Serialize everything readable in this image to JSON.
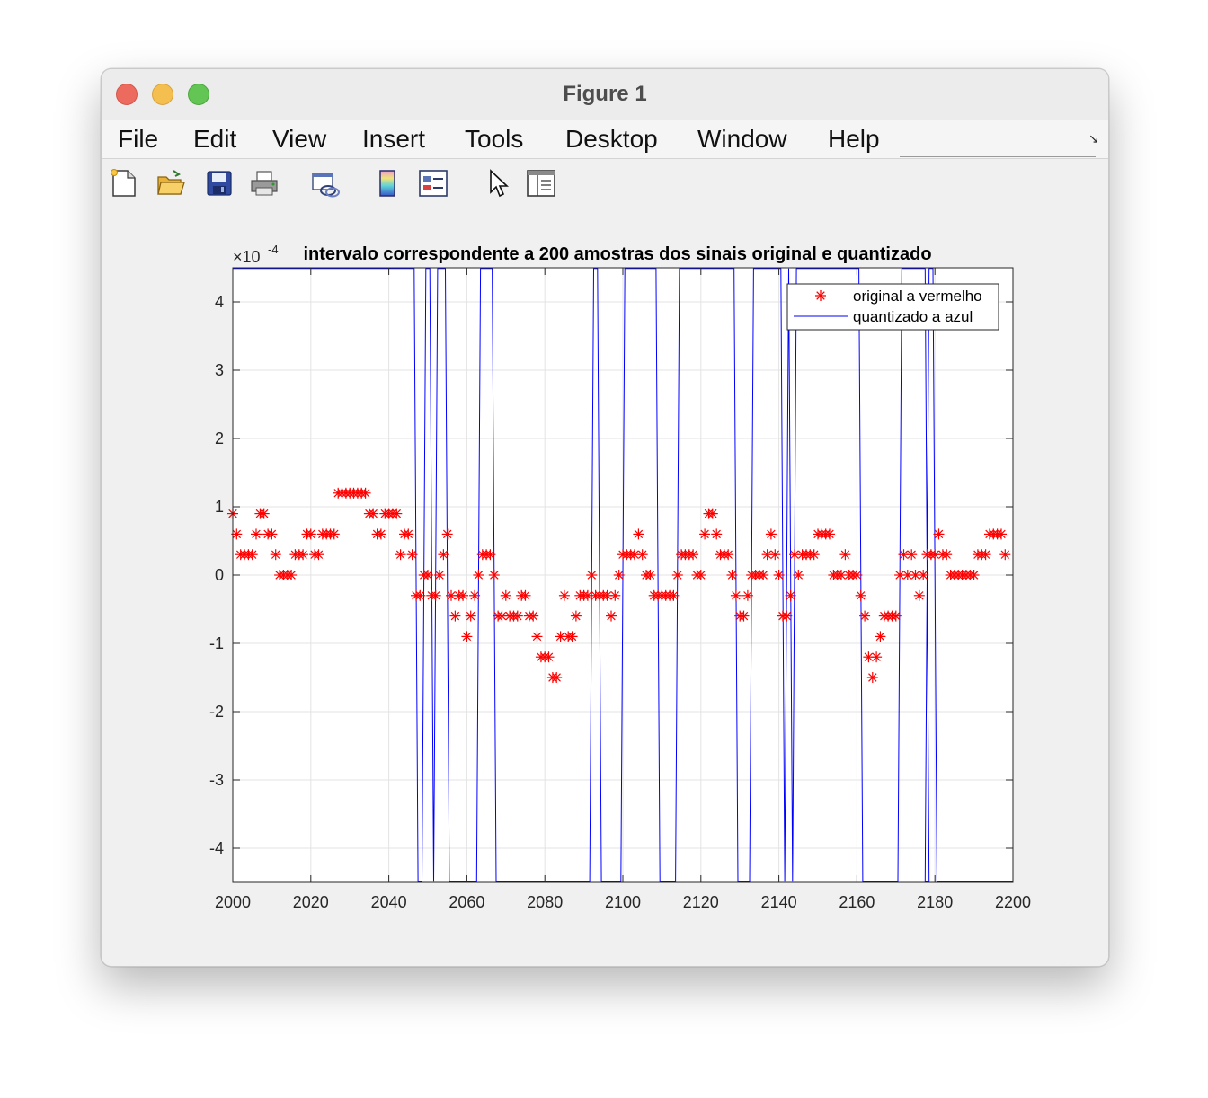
{
  "window": {
    "title": "Figure 1",
    "traffic_lights": {
      "close": "#ed6a5e",
      "minimize": "#f5bf4f",
      "maximize": "#62c554"
    }
  },
  "menubar": {
    "items": [
      {
        "label": "File"
      },
      {
        "label": "Edit"
      },
      {
        "label": "View"
      },
      {
        "label": "Insert"
      },
      {
        "label": "Tools"
      },
      {
        "label": "Desktop"
      },
      {
        "label": "Window"
      },
      {
        "label": "Help"
      }
    ],
    "overflow_icon": "dock-arrow-icon"
  },
  "toolbar": {
    "buttons": [
      {
        "icon": "new-figure-icon"
      },
      {
        "icon": "open-file-icon"
      },
      {
        "icon": "save-icon"
      },
      {
        "icon": "print-icon"
      },
      {
        "icon": "link-plot-icon"
      },
      {
        "icon": "colorbar-icon"
      },
      {
        "icon": "legend-icon"
      },
      {
        "icon": "pointer-icon"
      },
      {
        "icon": "property-inspector-icon"
      }
    ]
  },
  "chart_data": {
    "type": "line",
    "title": "intervalo correspondente a 200 amostras dos sinais original e quantizado",
    "xlabel": "",
    "ylabel": "",
    "xlim": [
      2000,
      2200
    ],
    "ylim": [
      -0.00045,
      0.00045
    ],
    "y_exponent_label": "×10",
    "y_exponent_power": "-4",
    "x_ticks": [
      "2000",
      "2020",
      "2040",
      "2060",
      "2080",
      "2100",
      "2120",
      "2140",
      "2160",
      "2180",
      "2200"
    ],
    "y_ticks": [
      "-4",
      "-3",
      "-2",
      "-1",
      "0",
      "1",
      "2",
      "3",
      "4"
    ],
    "grid": true,
    "legend_position": "top-right",
    "series": [
      {
        "name": "original a vermelho",
        "color": "#ff0000",
        "marker": "*",
        "x_start": 2000,
        "values_e4": [
          0.9,
          0.6,
          0.3,
          0.3,
          0.3,
          0.3,
          0.6,
          0.9,
          0.9,
          0.6,
          0.6,
          0.3,
          0,
          0,
          0,
          0,
          0.3,
          0.3,
          0.3,
          0.6,
          0.6,
          0.3,
          0.3,
          0.6,
          0.6,
          0.6,
          0.6,
          1.2,
          1.2,
          1.2,
          1.2,
          1.2,
          1.2,
          1.2,
          1.2,
          0.9,
          0.9,
          0.6,
          0.6,
          0.9,
          0.9,
          0.9,
          0.9,
          0.3,
          0.6,
          0.6,
          0.3,
          -0.3,
          -0.3,
          0,
          0,
          -0.3,
          -0.3,
          0,
          0.3,
          0.6,
          -0.3,
          -0.6,
          -0.3,
          -0.3,
          -0.9,
          -0.6,
          -0.3,
          0,
          0.3,
          0.3,
          0.3,
          0,
          -0.6,
          -0.6,
          -0.3,
          -0.6,
          -0.6,
          -0.6,
          -0.3,
          -0.3,
          -0.6,
          -0.6,
          -0.9,
          -1.2,
          -1.2,
          -1.2,
          -1.5,
          -1.5,
          -0.9,
          -0.3,
          -0.9,
          -0.9,
          -0.6,
          -0.3,
          -0.3,
          -0.3,
          0,
          -0.3,
          -0.3,
          -0.3,
          -0.3,
          -0.6,
          -0.3,
          0,
          0.3,
          0.3,
          0.3,
          0.3,
          0.6,
          0.3,
          0,
          0,
          -0.3,
          -0.3,
          -0.3,
          -0.3,
          -0.3,
          -0.3,
          0,
          0.3,
          0.3,
          0.3,
          0.3,
          0,
          0,
          0.6,
          0.9,
          0.9,
          0.6,
          0.3,
          0.3,
          0.3,
          0,
          -0.3,
          -0.6,
          -0.6,
          -0.3,
          0,
          0,
          0,
          0,
          0.3,
          0.6,
          0.3,
          0,
          -0.6,
          -0.6,
          -0.3,
          0.3,
          0,
          0.3,
          0.3,
          0.3,
          0.3,
          0.6,
          0.6,
          0.6,
          0.6,
          0,
          0,
          0,
          0.3,
          0,
          0,
          0,
          -0.3,
          -0.6,
          -1.2,
          -1.5,
          -1.2,
          -0.9,
          -0.6,
          -0.6,
          -0.6,
          -0.6,
          0,
          0.3,
          0,
          0.3,
          0,
          -0.3,
          0,
          0.3,
          0.3,
          0.3,
          0.6,
          0.3,
          0.3,
          0,
          0,
          0,
          0,
          0,
          0,
          0,
          0.3,
          0.3,
          0.3,
          0.6,
          0.6,
          0.6,
          0.6,
          0.3
        ]
      },
      {
        "name": "quantizado a azul",
        "color": "#0000ff",
        "marker": "line",
        "high_intervals": [
          [
            2000,
            2046
          ],
          [
            2049,
            2050
          ],
          [
            2052,
            2054
          ],
          [
            2063,
            2066
          ],
          [
            2092,
            2093
          ],
          [
            2100,
            2108
          ],
          [
            2114,
            2128
          ],
          [
            2133,
            2140
          ],
          [
            2142,
            2142
          ],
          [
            2144,
            2160
          ],
          [
            2171,
            2177
          ],
          [
            2178,
            2179
          ]
        ]
      }
    ]
  }
}
